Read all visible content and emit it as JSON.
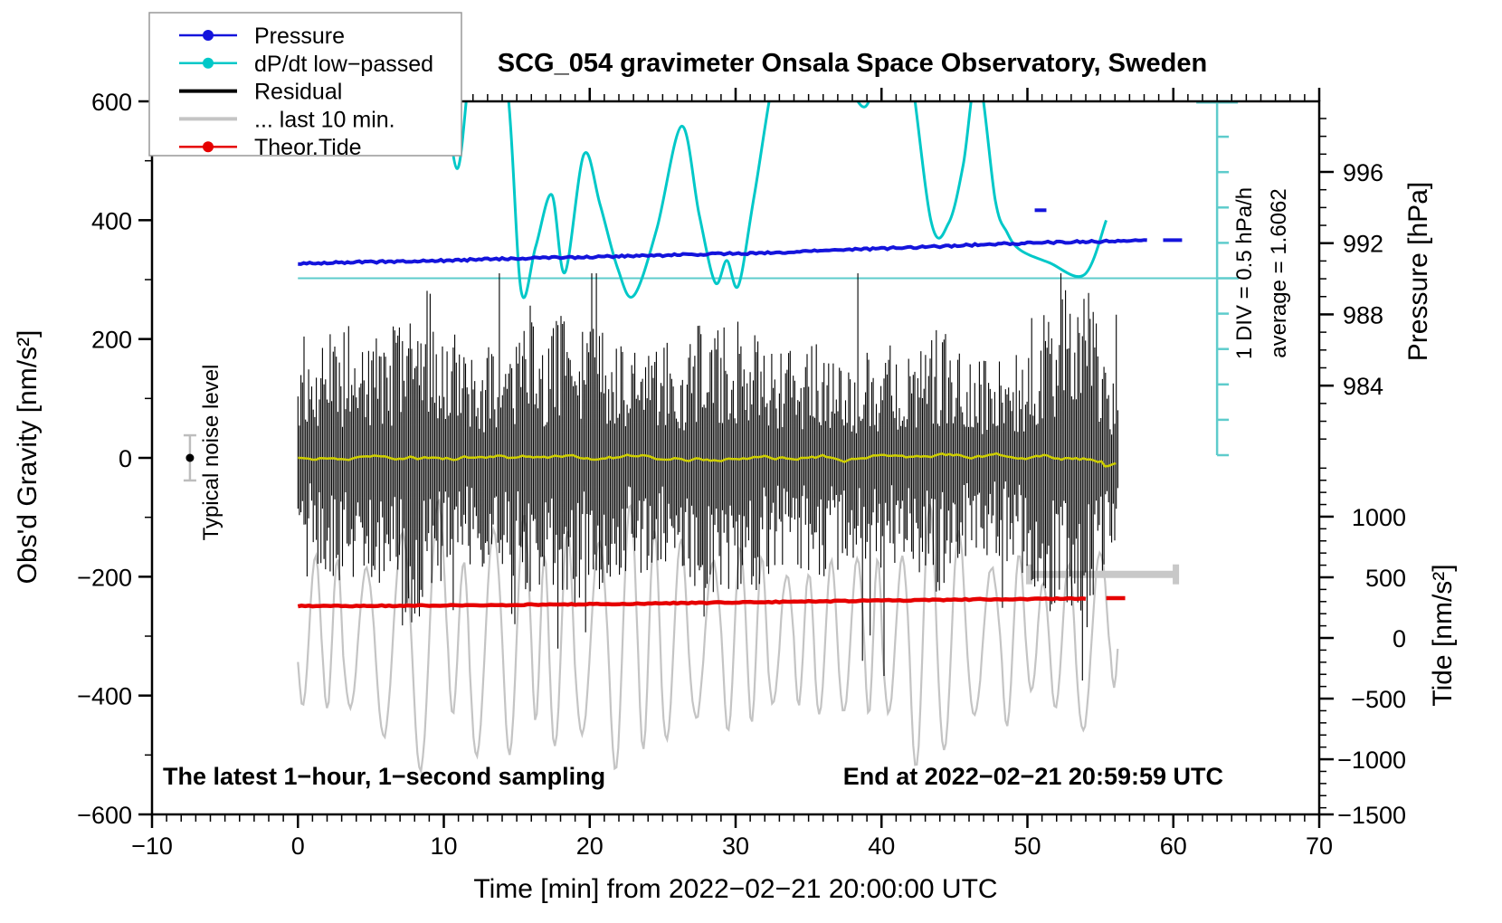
{
  "title": "SCG_054 gravimeter Onsala Space Observatory, Sweden",
  "legend": {
    "items": [
      {
        "label": "Pressure",
        "color": "#1414dc",
        "marker": "circle",
        "line_width": 2.5
      },
      {
        "label": "dP/dt low−passed",
        "color": "#00c8c8",
        "marker": "circle",
        "line_width": 2.5
      },
      {
        "label": "Residual",
        "color": "#000000",
        "marker": "none",
        "line_width": 4
      },
      {
        "label": "... last 10 min.",
        "color": "#c4c4c4",
        "marker": "none",
        "line_width": 4
      },
      {
        "label": "Theor.Tide",
        "color": "#e60000",
        "marker": "circle",
        "line_width": 2.5
      }
    ]
  },
  "texts": {
    "sampling_note": "The latest 1−hour, 1−second sampling",
    "end_note": "End at 2022−02−21 20:59:59 UTC",
    "div_note": "1 DIV = 0.5 hPa/h",
    "average_note": "average = 1.6062",
    "noise_note": "Typical noise level"
  },
  "chart_data": {
    "type": "line",
    "title": "SCG_054 gravimeter Onsala Space Observatory, Sweden",
    "x_axis": {
      "label": "Time [min] from 2022−02−21 20:00:00 UTC",
      "range": [
        -10,
        70
      ],
      "minor_step": 1,
      "major_ticks": [
        {
          "v": -10,
          "label": "−10"
        },
        {
          "v": 0,
          "label": "0"
        },
        {
          "v": 10,
          "label": "10"
        },
        {
          "v": 20,
          "label": "20"
        },
        {
          "v": 30,
          "label": "30"
        },
        {
          "v": 40,
          "label": "40"
        },
        {
          "v": 50,
          "label": "50"
        },
        {
          "v": 60,
          "label": "60"
        },
        {
          "v": 70,
          "label": "70"
        }
      ]
    },
    "y_gravity": {
      "label": "Obs'd Gravity [nm/s²]",
      "range": [
        -600,
        600
      ],
      "minor_step": 100,
      "major_ticks": [
        {
          "v": 600,
          "label": "600"
        },
        {
          "v": 400,
          "label": "400"
        },
        {
          "v": 200,
          "label": "200"
        },
        {
          "v": 0,
          "label": "0"
        },
        {
          "v": -200,
          "label": "−200"
        },
        {
          "v": -400,
          "label": "−400"
        },
        {
          "v": -600,
          "label": "−600"
        }
      ]
    },
    "y_pressure": {
      "label": "Pressure [hPa]",
      "minor_step": 1,
      "minor_range": [
        981,
        999
      ],
      "major_ticks": [
        {
          "v": 996,
          "label": "996"
        },
        {
          "v": 992,
          "label": "992"
        },
        {
          "v": 988,
          "label": "988"
        },
        {
          "v": 984,
          "label": "984"
        }
      ]
    },
    "y_tide": {
      "label": "Tide [nm/s²]",
      "minor_step": 100,
      "minor_range": [
        -1400,
        1400
      ],
      "major_ticks": [
        {
          "v": 1000,
          "label": "1000"
        },
        {
          "v": 500,
          "label": "500"
        },
        {
          "v": 0,
          "label": "0"
        },
        {
          "v": -500,
          "label": "−500"
        },
        {
          "v": -1000,
          "label": "−1000"
        },
        {
          "v": -1500,
          "label": "−1500"
        }
      ]
    },
    "dpdt_scale": {
      "t_position": 63,
      "div_hpa_per_h": 0.5,
      "n_divs": 10,
      "zero_at_gravity": 300
    },
    "last10_window": {
      "t0": 50,
      "t1": 60.3,
      "gravity_level": -196
    },
    "noise_marker": {
      "t": -7.4,
      "gravity": 0,
      "error_nms2": 38
    },
    "series": [
      {
        "name": "Pressure",
        "axis": "pressure",
        "unit": "hPa",
        "color": "#1414dc",
        "points": [
          [
            0,
            990.85
          ],
          [
            5,
            990.95
          ],
          [
            10,
            991.02
          ],
          [
            15,
            991.15
          ],
          [
            20,
            991.22
          ],
          [
            25,
            991.32
          ],
          [
            30,
            991.42
          ],
          [
            33,
            991.46
          ],
          [
            36,
            991.58
          ],
          [
            40,
            991.7
          ],
          [
            44,
            991.82
          ],
          [
            48,
            991.95
          ],
          [
            52,
            992.05
          ],
          [
            55,
            992.1
          ],
          [
            58.3,
            992.15
          ]
        ],
        "dash_points": [
          [
            59.3,
            992.17
          ],
          [
            60.6,
            992.17
          ]
        ],
        "outlier_segment": [
          [
            50.5,
            993.85
          ],
          [
            51.3,
            993.85
          ]
        ],
        "average_dpdt_hpa_per_h": 1.6062
      },
      {
        "name": "dP/dt low−passed",
        "axis": "dpdt",
        "unit": "hPa/h",
        "color": "#00c8c8",
        "zero_reference_gravity": 300,
        "points": [
          [
            9.8,
            3.3
          ],
          [
            10.9,
            1.55
          ],
          [
            11.9,
            3.1
          ],
          [
            13.2,
            3.6
          ],
          [
            14.4,
            2.6
          ],
          [
            15.3,
            -0.18
          ],
          [
            16.3,
            0.45
          ],
          [
            17.4,
            1.18
          ],
          [
            18.3,
            0.08
          ],
          [
            19.6,
            1.75
          ],
          [
            20.7,
            1.05
          ],
          [
            21.9,
            0.15
          ],
          [
            23.0,
            -0.25
          ],
          [
            24.6,
            0.7
          ],
          [
            26.3,
            2.15
          ],
          [
            27.5,
            0.9
          ],
          [
            28.6,
            -0.06
          ],
          [
            29.4,
            0.25
          ],
          [
            30.2,
            -0.1
          ],
          [
            31.3,
            1.2
          ],
          [
            33.0,
            3.2
          ],
          [
            35.0,
            3.8
          ],
          [
            37.0,
            3.1
          ],
          [
            38.8,
            2.42
          ],
          [
            40.0,
            3.1
          ],
          [
            41.6,
            3.4
          ],
          [
            43.4,
            0.8
          ],
          [
            44.6,
            0.78
          ],
          [
            45.6,
            1.6
          ],
          [
            46.6,
            2.9
          ],
          [
            47.8,
            1.1
          ],
          [
            48.6,
            0.65
          ],
          [
            49.5,
            0.4
          ],
          [
            51.5,
            0.22
          ],
          [
            53.9,
            0.05
          ],
          [
            55.4,
            0.82
          ]
        ]
      },
      {
        "name": "Residual",
        "axis": "gravity",
        "unit": "nm/s²",
        "color": "#000000",
        "center_gravity": 0,
        "t_range": [
          0,
          56.2
        ],
        "envelope_nms2": [
          [
            0,
            150
          ],
          [
            3,
            230
          ],
          [
            5,
            200
          ],
          [
            8,
            290
          ],
          [
            10,
            200
          ],
          [
            13,
            190
          ],
          [
            16,
            230
          ],
          [
            19,
            250
          ],
          [
            22,
            200
          ],
          [
            25,
            190
          ],
          [
            28,
            230
          ],
          [
            31,
            250
          ],
          [
            33,
            180
          ],
          [
            36,
            200
          ],
          [
            39,
            180
          ],
          [
            42,
            200
          ],
          [
            44,
            230
          ],
          [
            46,
            160
          ],
          [
            48,
            170
          ],
          [
            50,
            200
          ],
          [
            52,
            280
          ],
          [
            54,
            300
          ],
          [
            55.5,
            180
          ],
          [
            56.2,
            150
          ]
        ]
      },
      {
        "name": "... last 10 min.",
        "axis": "tide",
        "unit": "nm/s²",
        "color": "#c4c4c4",
        "center_tide": 0,
        "t_range": [
          0,
          56.2
        ],
        "envelope_nms2": [
          [
            0,
            500
          ],
          [
            2,
            800
          ],
          [
            4,
            1000
          ],
          [
            6,
            900
          ],
          [
            9,
            1100
          ],
          [
            12,
            1150
          ],
          [
            14,
            1000
          ],
          [
            17,
            1100
          ],
          [
            20,
            1050
          ],
          [
            23,
            1150
          ],
          [
            26,
            1000
          ],
          [
            28,
            900
          ],
          [
            30,
            800
          ],
          [
            33,
            700
          ],
          [
            36,
            650
          ],
          [
            38,
            750
          ],
          [
            40,
            900
          ],
          [
            43,
            1100
          ],
          [
            45,
            1050
          ],
          [
            48,
            800
          ],
          [
            50,
            700
          ],
          [
            53,
            850
          ],
          [
            56,
            700
          ]
        ]
      },
      {
        "name": "Theor.Tide",
        "axis": "tide",
        "unit": "nm/s²",
        "color": "#e60000",
        "points": [
          [
            0,
            262
          ],
          [
            8,
            266
          ],
          [
            16,
            274
          ],
          [
            24,
            284
          ],
          [
            32,
            296
          ],
          [
            40,
            308
          ],
          [
            47,
            318
          ],
          [
            54,
            326
          ]
        ],
        "dash_points": [
          [
            55.4,
            328
          ],
          [
            56.7,
            328
          ]
        ]
      },
      {
        "name": "Residual low−passed",
        "axis": "gravity",
        "unit": "nm/s²",
        "color": "#cfcf00",
        "center_gravity": 0,
        "wiggle_nms2": 12,
        "t_range": [
          0,
          56.2
        ]
      }
    ]
  }
}
